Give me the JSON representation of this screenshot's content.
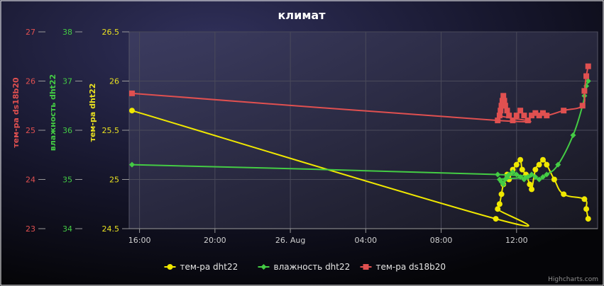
{
  "chart_data": {
    "type": "line",
    "title": "климат",
    "credits": "Highcharts.com",
    "x": {
      "type": "datetime",
      "tick_labels": [
        "16:00",
        "20:00",
        "26. Aug",
        "04:00",
        "08:00",
        "12:00"
      ],
      "tick_hours": [
        16,
        20,
        24,
        28,
        32,
        36
      ],
      "range_hours": [
        15.45,
        40.3
      ]
    },
    "y_axes": [
      {
        "id": "temp_ds18b20",
        "title": "тем-ра ds18b20",
        "color": "#e05050",
        "range": [
          23,
          27
        ],
        "ticks": [
          "23",
          "24",
          "25",
          "26",
          "27"
        ]
      },
      {
        "id": "hum_dht22",
        "title": "влажность dht22",
        "color": "#44cc44",
        "range": [
          34,
          38
        ],
        "ticks": [
          "34",
          "35",
          "36",
          "37",
          "38"
        ]
      },
      {
        "id": "temp_dht22",
        "title": "тем-ра dht22",
        "color": "#e8e020",
        "range": [
          24.5,
          26.5
        ],
        "ticks": [
          "24.5",
          "25",
          "25.5",
          "26",
          "26.5"
        ]
      }
    ],
    "series": [
      {
        "name": "тем-ра dht22",
        "axis": "temp_dht22",
        "color": "#f0e800",
        "marker": "circle",
        "points": [
          [
            15.6,
            25.7
          ],
          [
            34.9,
            24.6
          ],
          [
            35.0,
            24.7
          ],
          [
            35.1,
            24.75
          ],
          [
            35.2,
            24.85
          ],
          [
            35.3,
            24.95
          ],
          [
            35.5,
            25.05
          ],
          [
            35.6,
            25.0
          ],
          [
            35.8,
            25.1
          ],
          [
            36.0,
            25.15
          ],
          [
            36.2,
            25.2
          ],
          [
            36.3,
            25.1
          ],
          [
            36.5,
            25.05
          ],
          [
            36.7,
            24.95
          ],
          [
            36.8,
            24.9
          ],
          [
            37.0,
            25.1
          ],
          [
            37.2,
            25.15
          ],
          [
            37.4,
            25.2
          ],
          [
            37.6,
            25.15
          ],
          [
            38.0,
            25.0
          ],
          [
            38.5,
            24.85
          ],
          [
            39.6,
            24.8
          ],
          [
            39.7,
            24.7
          ],
          [
            39.8,
            24.6
          ]
        ]
      },
      {
        "name": "влажность dht22",
        "axis": "hum_dht22",
        "color": "#44cc44",
        "marker": "diamond",
        "points": [
          [
            15.6,
            35.3
          ],
          [
            35.0,
            35.1
          ],
          [
            35.1,
            35.0
          ],
          [
            35.2,
            34.95
          ],
          [
            35.3,
            34.9
          ],
          [
            35.4,
            35.0
          ],
          [
            35.5,
            35.05
          ],
          [
            35.6,
            35.1
          ],
          [
            35.8,
            35.15
          ],
          [
            36.0,
            35.1
          ],
          [
            36.2,
            35.05
          ],
          [
            36.4,
            35.0
          ],
          [
            36.6,
            35.05
          ],
          [
            36.8,
            35.1
          ],
          [
            37.0,
            35.05
          ],
          [
            37.2,
            35.0
          ],
          [
            37.4,
            35.05
          ],
          [
            37.6,
            35.1
          ],
          [
            38.2,
            35.3
          ],
          [
            39.0,
            35.9
          ],
          [
            39.5,
            36.5
          ],
          [
            39.6,
            36.7
          ],
          [
            39.7,
            36.9
          ],
          [
            39.8,
            37.0
          ]
        ]
      },
      {
        "name": "тем-ра ds18b20",
        "axis": "temp_ds18b20",
        "color": "#e05050",
        "marker": "square",
        "points": [
          [
            15.6,
            25.75
          ],
          [
            35.0,
            25.2
          ],
          [
            35.1,
            25.3
          ],
          [
            35.15,
            25.4
          ],
          [
            35.2,
            25.5
          ],
          [
            35.25,
            25.6
          ],
          [
            35.3,
            25.7
          ],
          [
            35.35,
            25.6
          ],
          [
            35.4,
            25.5
          ],
          [
            35.5,
            25.4
          ],
          [
            35.6,
            25.3
          ],
          [
            35.8,
            25.2
          ],
          [
            36.0,
            25.3
          ],
          [
            36.2,
            25.4
          ],
          [
            36.4,
            25.3
          ],
          [
            36.6,
            25.2
          ],
          [
            36.8,
            25.3
          ],
          [
            37.0,
            25.35
          ],
          [
            37.2,
            25.3
          ],
          [
            37.4,
            25.35
          ],
          [
            37.6,
            25.3
          ],
          [
            38.5,
            25.4
          ],
          [
            39.5,
            25.5
          ],
          [
            39.6,
            25.8
          ],
          [
            39.7,
            26.1
          ],
          [
            39.8,
            26.3
          ]
        ]
      }
    ],
    "legend": {
      "placement": "bottom-center",
      "items": [
        "тем-ра dht22",
        "влажность dht22",
        "тем-ра ds18b20"
      ]
    },
    "grid": true
  }
}
